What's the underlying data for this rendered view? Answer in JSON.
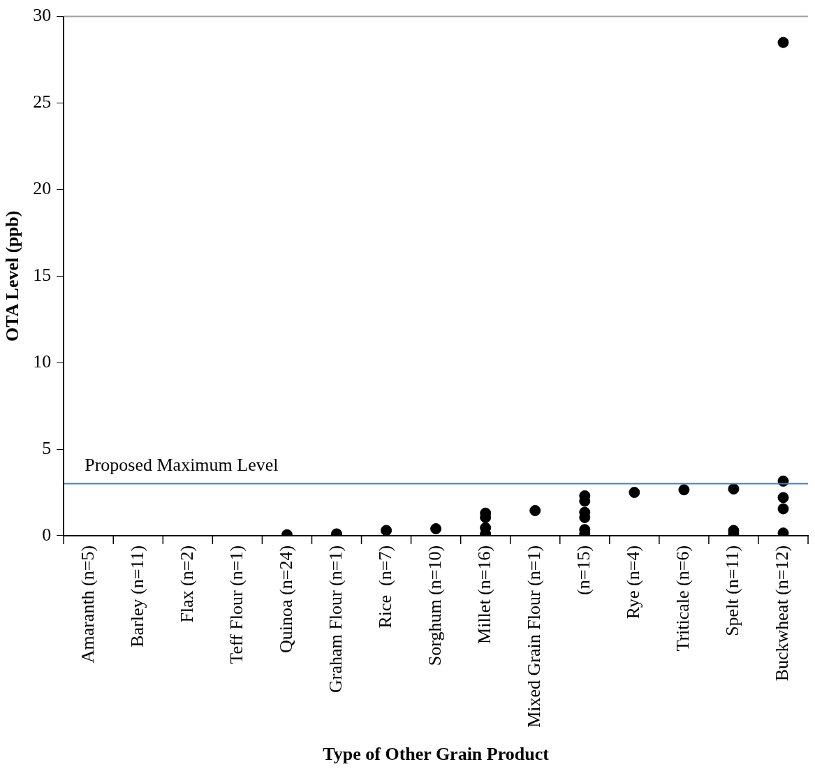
{
  "chart_data": {
    "type": "scatter",
    "xlabel": "Type of Other Grain Product",
    "ylabel": "OTA Level (ppb)",
    "categories": [
      "Amaranth (n=5)",
      "Barley (n=11)",
      "Flax (n=2)",
      "Teff Flour (n=1)",
      "Quinoa (n=24)",
      "Graham Flour (n=1)",
      "Rice  (n=7)",
      "Sorghum (n=10)",
      "Millet (n=16)",
      "Mixed Grain Flour (n=1)",
      "(n=15)",
      "Rye (n=4)",
      "Triticale (n=6)",
      "Spelt (n=11)",
      "Buckwheat (n=12)"
    ],
    "series": [
      {
        "color": "#000000",
        "x": [
          "Quinoa (n=24)",
          "Graham Flour (n=1)",
          "Rice  (n=7)",
          "Sorghum (n=10)",
          "Millet (n=16)",
          "Millet (n=16)",
          "Millet (n=16)",
          "Millet (n=16)",
          "Mixed Grain Flour (n=1)",
          "(n=15)",
          "(n=15)",
          "(n=15)",
          "(n=15)",
          "(n=15)",
          "(n=15)",
          "Rye (n=4)",
          "Triticale (n=6)",
          "Spelt (n=11)",
          "Spelt (n=11)",
          "Spelt (n=11)",
          "Buckwheat (n=12)",
          "Buckwheat (n=12)",
          "Buckwheat (n=12)",
          "Buckwheat (n=12)",
          "Buckwheat (n=12)"
        ],
        "values": [
          0.05,
          0.1,
          0.3,
          0.4,
          1.3,
          1.05,
          0.45,
          0.1,
          1.45,
          2.3,
          2.0,
          1.35,
          1.05,
          0.35,
          0.1,
          2.5,
          2.65,
          2.7,
          0.3,
          0.1,
          28.5,
          3.15,
          2.2,
          1.55,
          0.15
        ]
      }
    ],
    "ylim": [
      0,
      30
    ],
    "yticks": [
      0,
      5,
      10,
      15,
      20,
      25,
      30
    ],
    "grid": false,
    "legend": false,
    "marker": "circle",
    "ref_lines": [
      {
        "axis": "y",
        "value": 3,
        "label": "Proposed Maximum Level",
        "color": "#4a7ebb"
      }
    ]
  }
}
